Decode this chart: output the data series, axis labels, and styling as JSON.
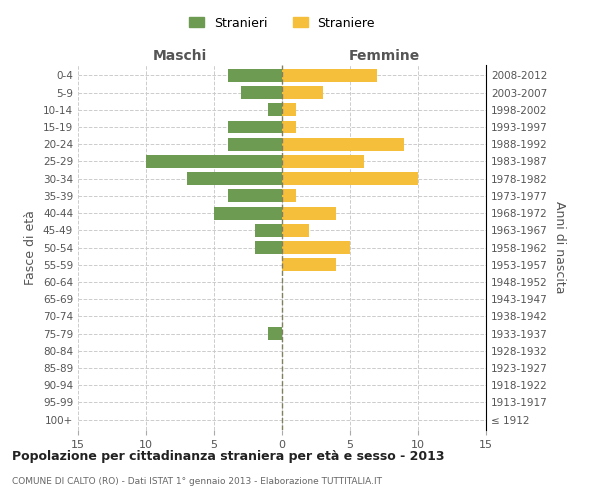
{
  "age_groups": [
    "100+",
    "95-99",
    "90-94",
    "85-89",
    "80-84",
    "75-79",
    "70-74",
    "65-69",
    "60-64",
    "55-59",
    "50-54",
    "45-49",
    "40-44",
    "35-39",
    "30-34",
    "25-29",
    "20-24",
    "15-19",
    "10-14",
    "5-9",
    "0-4"
  ],
  "birth_years": [
    "≤ 1912",
    "1913-1917",
    "1918-1922",
    "1923-1927",
    "1928-1932",
    "1933-1937",
    "1938-1942",
    "1943-1947",
    "1948-1952",
    "1953-1957",
    "1958-1962",
    "1963-1967",
    "1968-1972",
    "1973-1977",
    "1978-1982",
    "1983-1987",
    "1988-1992",
    "1993-1997",
    "1998-2002",
    "2003-2007",
    "2008-2012"
  ],
  "maschi": [
    0,
    0,
    0,
    0,
    0,
    1,
    0,
    0,
    0,
    0,
    2,
    2,
    5,
    4,
    7,
    10,
    4,
    4,
    1,
    3,
    4
  ],
  "femmine": [
    0,
    0,
    0,
    0,
    0,
    0,
    0,
    0,
    0,
    4,
    5,
    2,
    4,
    1,
    10,
    6,
    9,
    1,
    1,
    3,
    7
  ],
  "color_maschi": "#6d9b52",
  "color_femmine": "#f5be3b",
  "title": "Popolazione per cittadinanza straniera per età e sesso - 2013",
  "subtitle1": "COMUNE DI CALTO (RO) - Dati ISTAT 1° gennaio 2013 - Elaborazione TUTTITALIA.IT",
  "xlabel_left": "Maschi",
  "xlabel_right": "Femmine",
  "ylabel_left": "Fasce di età",
  "ylabel_right": "Anni di nascita",
  "legend_maschi": "Stranieri",
  "legend_femmine": "Straniere",
  "xlim": 15,
  "background_color": "#ffffff",
  "grid_color": "#cccccc",
  "center_line_color": "#808060"
}
